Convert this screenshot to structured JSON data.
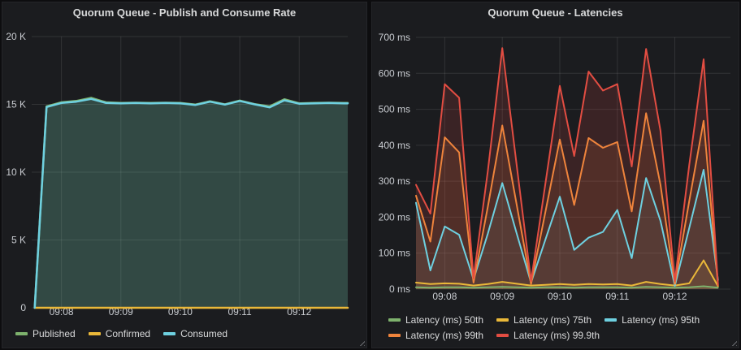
{
  "theme": {
    "background": "#0d0d0f",
    "panel_background": "#1b1c1f",
    "grid_color": "rgba(255,255,255,0.10)",
    "title_color": "#d8d9da",
    "tick_label_color": "#c9ccd1",
    "series_colors": {
      "green": "#7EB26D",
      "yellow": "#EAB839",
      "cyan": "#6ED0E0",
      "orange": "#EF843C",
      "red": "#E24D42"
    }
  },
  "panels": [
    {
      "title": "Quorum Queue - Publish and Consume Rate",
      "legend_rows": [
        [
          {
            "label": "Published",
            "color": "#7EB26D"
          },
          {
            "label": "Confirmed",
            "color": "#EAB839"
          },
          {
            "label": "Consumed",
            "color": "#6ED0E0"
          }
        ]
      ]
    },
    {
      "title": "Quorum Queue - Latencies",
      "legend_rows": [
        [
          {
            "label": "Latency (ms) 50th",
            "color": "#7EB26D"
          },
          {
            "label": "Latency (ms) 75th",
            "color": "#EAB839"
          },
          {
            "label": "Latency (ms) 95th",
            "color": "#6ED0E0"
          }
        ],
        [
          {
            "label": "Latency (ms) 99th",
            "color": "#EF843C"
          },
          {
            "label": "Latency (ms) 99.9th",
            "color": "#E24D42"
          }
        ]
      ]
    }
  ],
  "chart_data": [
    {
      "type": "area",
      "title": "Quorum Queue - Publish and Consume Rate",
      "xlabel": "",
      "ylabel": "",
      "ylim": [
        0,
        20000
      ],
      "grid": true,
      "legend_position": "bottom",
      "x_range": [
        "09:07:30",
        "09:12:49"
      ],
      "yticks": [
        {
          "value": 20000,
          "label": "20 K"
        },
        {
          "value": 15000,
          "label": "15 K"
        },
        {
          "value": 10000,
          "label": "10 K"
        },
        {
          "value": 5000,
          "label": "5 K"
        },
        {
          "value": 0,
          "label": "0"
        }
      ],
      "xticks": [
        {
          "value": "09:08:00",
          "label": "09:08"
        },
        {
          "value": "09:09:00",
          "label": "09:09"
        },
        {
          "value": "09:10:00",
          "label": "09:10"
        },
        {
          "value": "09:11:00",
          "label": "09:11"
        },
        {
          "value": "09:12:00",
          "label": "09:12"
        }
      ],
      "x": [
        "09:07:33",
        "09:07:45",
        "09:08:00",
        "09:08:15",
        "09:08:30",
        "09:08:45",
        "09:09:00",
        "09:09:15",
        "09:09:30",
        "09:09:45",
        "09:10:00",
        "09:10:15",
        "09:10:30",
        "09:10:45",
        "09:11:00",
        "09:11:15",
        "09:11:30",
        "09:11:45",
        "09:12:00",
        "09:12:15",
        "09:12:30",
        "09:12:45",
        "09:12:49"
      ],
      "series": [
        {
          "name": "Published",
          "color": "#7EB26D",
          "fill_opacity": 0.15,
          "values": [
            0,
            14850,
            15150,
            15250,
            15480,
            15150,
            15100,
            15120,
            15100,
            15120,
            15100,
            14980,
            15230,
            15000,
            15280,
            15020,
            14850,
            15380,
            15080,
            15100,
            15120,
            15100,
            15100
          ]
        },
        {
          "name": "Confirmed",
          "color": "#EAB839",
          "fill_opacity": 0,
          "values": [
            0,
            0,
            0,
            0,
            0,
            0,
            0,
            0,
            0,
            0,
            0,
            0,
            0,
            0,
            0,
            0,
            0,
            0,
            0,
            0,
            0,
            0,
            0
          ]
        },
        {
          "name": "Consumed",
          "color": "#6ED0E0",
          "fill_opacity": 0.15,
          "values": [
            0,
            14800,
            15100,
            15200,
            15400,
            15100,
            15080,
            15100,
            15080,
            15100,
            15080,
            14950,
            15200,
            14980,
            15250,
            15000,
            14780,
            15300,
            15050,
            15080,
            15100,
            15080,
            15080
          ]
        }
      ]
    },
    {
      "type": "line",
      "title": "Quorum Queue - Latencies",
      "xlabel": "",
      "ylabel": "",
      "ylim": [
        0,
        700
      ],
      "grid": true,
      "legend_position": "bottom",
      "x_range": [
        "09:07:30",
        "09:12:58"
      ],
      "yticks": [
        {
          "value": 700,
          "label": "700 ms"
        },
        {
          "value": 600,
          "label": "600 ms"
        },
        {
          "value": 500,
          "label": "500 ms"
        },
        {
          "value": 400,
          "label": "400 ms"
        },
        {
          "value": 300,
          "label": "300 ms"
        },
        {
          "value": 200,
          "label": "200 ms"
        },
        {
          "value": 100,
          "label": "100 ms"
        },
        {
          "value": 0,
          "label": "0 ms"
        }
      ],
      "xticks": [
        {
          "value": "09:08:00",
          "label": "09:08"
        },
        {
          "value": "09:09:00",
          "label": "09:09"
        },
        {
          "value": "09:10:00",
          "label": "09:10"
        },
        {
          "value": "09:11:00",
          "label": "09:11"
        },
        {
          "value": "09:12:00",
          "label": "09:12"
        }
      ],
      "x": [
        "09:07:30",
        "09:07:45",
        "09:08:00",
        "09:08:15",
        "09:08:30",
        "09:08:45",
        "09:09:00",
        "09:09:15",
        "09:09:30",
        "09:09:45",
        "09:10:00",
        "09:10:15",
        "09:10:30",
        "09:10:45",
        "09:11:00",
        "09:11:15",
        "09:11:30",
        "09:11:45",
        "09:12:00",
        "09:12:15",
        "09:12:30",
        "09:12:45"
      ],
      "series": [
        {
          "name": "Latency (ms) 50th",
          "color": "#7EB26D",
          "fill_opacity": 0.1,
          "values": [
            5,
            4,
            5,
            5,
            4,
            5,
            6,
            5,
            4,
            5,
            5,
            4,
            5,
            5,
            5,
            4,
            6,
            5,
            4,
            5,
            8,
            4
          ]
        },
        {
          "name": "Latency (ms) 75th",
          "color": "#EAB839",
          "fill_opacity": 0.12,
          "values": [
            18,
            14,
            16,
            15,
            10,
            14,
            20,
            15,
            10,
            12,
            14,
            12,
            14,
            13,
            14,
            10,
            20,
            14,
            10,
            16,
            80,
            8
          ]
        },
        {
          "name": "Latency (ms) 95th",
          "color": "#6ED0E0",
          "fill_opacity": 0.1,
          "values": [
            240,
            52,
            174,
            151,
            27,
            155,
            295,
            155,
            18,
            138,
            257,
            109,
            143,
            159,
            220,
            86,
            309,
            190,
            9,
            170,
            332,
            25
          ]
        },
        {
          "name": "Latency (ms) 99th",
          "color": "#EF843C",
          "fill_opacity": 0.13,
          "values": [
            260,
            132,
            422,
            380,
            18,
            230,
            455,
            235,
            14,
            215,
            416,
            234,
            420,
            393,
            409,
            216,
            489,
            290,
            14,
            245,
            468,
            10
          ]
        },
        {
          "name": "Latency (ms) 99.9th",
          "color": "#E24D42",
          "fill_opacity": 0.16,
          "values": [
            290,
            210,
            570,
            532,
            30,
            330,
            670,
            345,
            22,
            294,
            565,
            370,
            605,
            552,
            570,
            341,
            668,
            440,
            22,
            345,
            639,
            12
          ]
        }
      ]
    }
  ]
}
